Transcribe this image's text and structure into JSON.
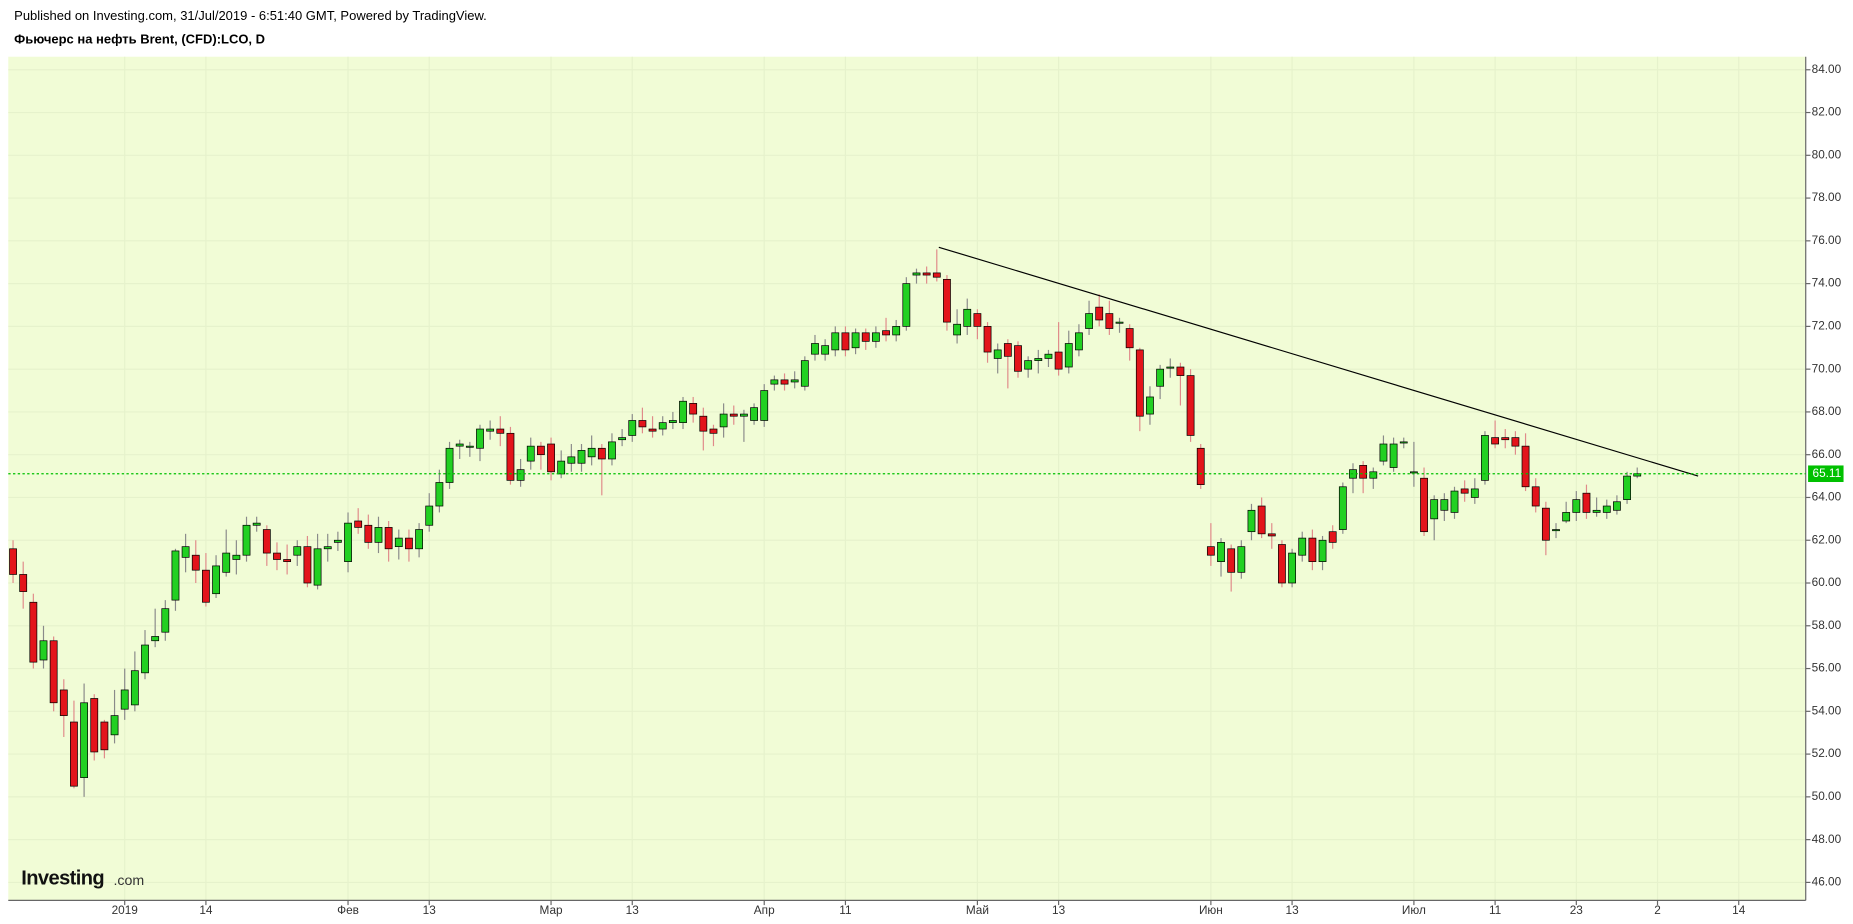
{
  "header": {
    "published": "Published on Investing.com, 31/Jul/2019 - 6:51:40 GMT, Powered by TradingView.",
    "symbol": "Фьючерс на нефть Brent, (CFD):LCO, D"
  },
  "logo": {
    "name": "Investing",
    "suffix": ".com"
  },
  "chart_data": {
    "type": "candlestick",
    "up_color": "#22d022",
    "down_color": "#e3141b",
    "background": "#f1fcd6",
    "grid": true,
    "xlim": [
      -0.47,
      176.6
    ],
    "ylim": [
      45.16,
      84.61
    ],
    "xticks": [
      {
        "value": 11,
        "label": "2019"
      },
      {
        "value": 19,
        "label": "14"
      },
      {
        "value": 33,
        "label": "Фев"
      },
      {
        "value": 41,
        "label": "13"
      },
      {
        "value": 53,
        "label": "Мар"
      },
      {
        "value": 61,
        "label": "13"
      },
      {
        "value": 74,
        "label": "Апр"
      },
      {
        "value": 82,
        "label": "11"
      },
      {
        "value": 95,
        "label": "Май"
      },
      {
        "value": 103,
        "label": "13"
      },
      {
        "value": 118,
        "label": "Июн"
      },
      {
        "value": 126,
        "label": "13"
      },
      {
        "value": 138,
        "label": "Июл"
      },
      {
        "value": 146,
        "label": "11"
      },
      {
        "value": 154,
        "label": "23"
      },
      {
        "value": 162,
        "label": "2"
      },
      {
        "value": 170,
        "label": "14"
      }
    ],
    "yticks": [
      {
        "value": 46,
        "label": "46.00"
      },
      {
        "value": 48,
        "label": "48.00"
      },
      {
        "value": 50,
        "label": "50.00"
      },
      {
        "value": 52,
        "label": "52.00"
      },
      {
        "value": 54,
        "label": "54.00"
      },
      {
        "value": 56,
        "label": "56.00"
      },
      {
        "value": 58,
        "label": "58.00"
      },
      {
        "value": 60,
        "label": "60.00"
      },
      {
        "value": 62,
        "label": "62.00"
      },
      {
        "value": 64,
        "label": "64.00"
      },
      {
        "value": 66,
        "label": "66.00"
      },
      {
        "value": 68,
        "label": "68.00"
      },
      {
        "value": 70,
        "label": "70.00"
      },
      {
        "value": 72,
        "label": "72.00"
      },
      {
        "value": 74,
        "label": "74.00"
      },
      {
        "value": 76,
        "label": "76.00"
      },
      {
        "value": 78,
        "label": "78.00"
      },
      {
        "value": 80,
        "label": "80.00"
      },
      {
        "value": 82,
        "label": "82.00"
      },
      {
        "value": 84,
        "label": "84.00"
      }
    ],
    "open": [
      61.6,
      60.4,
      59.1,
      56.4,
      57.3,
      55.0,
      53.5,
      50.9,
      54.6,
      53.5,
      52.9,
      54.1,
      54.3,
      55.8,
      57.3,
      57.7,
      59.2,
      61.2,
      61.3,
      60.6,
      59.5,
      60.5,
      61.1,
      61.3,
      62.7,
      62.5,
      61.4,
      61.1,
      61.3,
      61.7,
      59.9,
      61.6,
      61.9,
      61.0,
      62.9,
      62.7,
      61.9,
      62.6,
      61.7,
      62.1,
      61.6,
      62.7,
      63.6,
      64.7,
      66.4,
      66.4,
      66.3,
      67.1,
      67.2,
      67.0,
      64.8,
      65.7,
      66.4,
      66.5,
      65.1,
      65.6,
      65.6,
      65.9,
      66.3,
      65.8,
      66.7,
      66.9,
      67.6,
      67.2,
      67.2,
      67.5,
      67.5,
      68.4,
      67.8,
      67.2,
      67.3,
      67.9,
      67.8,
      67.6,
      67.6,
      69.3,
      69.5,
      69.4,
      69.2,
      70.7,
      70.7,
      70.9,
      71.7,
      71.0,
      71.7,
      71.3,
      71.8,
      71.6,
      72.0,
      74.4,
      74.5,
      74.5,
      74.2,
      71.6,
      72.0,
      72.6,
      72.0,
      70.5,
      71.2,
      71.1,
      70.0,
      70.4,
      70.5,
      70.8,
      70.1,
      70.9,
      71.9,
      72.9,
      72.6,
      72.2,
      71.9,
      70.9,
      67.9,
      69.2,
      70.1,
      70.1,
      69.7,
      66.3,
      61.7,
      61.0,
      61.6,
      60.5,
      62.4,
      63.6,
      62.3,
      61.8,
      60.0,
      61.3,
      62.1,
      61.0,
      62.4,
      62.5,
      64.9,
      65.5,
      64.9,
      65.7,
      65.4,
      66.6,
      65.2,
      64.9,
      63.0,
      63.4,
      63.3,
      64.4,
      64.0,
      64.8,
      66.8,
      66.8,
      66.8,
      66.4,
      64.5,
      63.5,
      62.5,
      62.9,
      63.3,
      64.2,
      63.3,
      63.3,
      63.4,
      63.9,
      65.0
    ],
    "high": [
      62,
      61,
      59.5,
      58,
      57.5,
      55.5,
      54.5,
      55.3,
      54.8,
      53.6,
      55,
      56,
      56.8,
      57.8,
      58.8,
      59.2,
      61.6,
      62.3,
      62,
      61.4,
      61.3,
      62.5,
      62,
      63.1,
      63.1,
      62.7,
      61.9,
      61.8,
      62,
      62.2,
      62.3,
      62.3,
      62.4,
      63.3,
      63.5,
      63.2,
      63.1,
      62.9,
      62.5,
      62.5,
      62.8,
      64.2,
      65.3,
      66.6,
      66.7,
      66.6,
      67.4,
      67.6,
      67.8,
      67.3,
      65.8,
      66.8,
      66.6,
      66.8,
      66.2,
      66.5,
      66.5,
      66.9,
      66.5,
      67,
      67.2,
      67.9,
      68.2,
      67.8,
      67.8,
      68,
      68.7,
      68.7,
      68.2,
      67.4,
      68.4,
      68.3,
      68.1,
      68.4,
      69.3,
      69.7,
      69.8,
      69.9,
      70.6,
      71.6,
      71.4,
      72,
      72,
      71.9,
      71.9,
      72,
      72.4,
      72.3,
      74.3,
      74.7,
      74.8,
      75.6,
      74.4,
      72.8,
      73.3,
      72.8,
      72.2,
      71.2,
      71.4,
      71.3,
      70.6,
      70.9,
      70.9,
      72.2,
      71.8,
      72.1,
      73.2,
      73.5,
      73.2,
      72.4,
      72.1,
      71,
      69.2,
      70.2,
      70.5,
      70.3,
      70,
      66.5,
      62.8,
      62.1,
      61.8,
      62,
      63.7,
      64,
      62.8,
      62,
      61.6,
      62.4,
      62.5,
      62.2,
      62.7,
      64.7,
      65.6,
      65.7,
      65.4,
      66.9,
      66.8,
      66.8,
      66.6,
      65.4,
      64.1,
      64.2,
      64.5,
      64.8,
      64.9,
      67.1,
      67.6,
      67.2,
      67.1,
      67,
      64.9,
      63.8,
      62.8,
      63.8,
      64.3,
      64.6,
      64,
      63.9,
      64.1,
      65.2,
      65.4
    ],
    "low": [
      60.0,
      58.8,
      56,
      56,
      54,
      52.8,
      50.4,
      50,
      51.7,
      51.8,
      52.5,
      53.6,
      54,
      55.5,
      57,
      57.3,
      58.7,
      60.5,
      60,
      58.9,
      59.3,
      60.3,
      60.4,
      61,
      62.4,
      60.8,
      60.6,
      60.4,
      60.8,
      59.8,
      59.7,
      61,
      61.5,
      60.5,
      62.3,
      61.6,
      61.4,
      61,
      61.1,
      61,
      61.2,
      62.4,
      63.3,
      64.4,
      65.8,
      65.9,
      65.7,
      66.7,
      66.4,
      64.6,
      64.5,
      65.3,
      65.3,
      64.8,
      64.9,
      65.2,
      65.2,
      65.5,
      64.1,
      65.5,
      66.4,
      66.6,
      67.0,
      66.8,
      66.9,
      67.2,
      67.2,
      67.5,
      66.2,
      66.4,
      66.8,
      67.4,
      66.6,
      67.4,
      67.3,
      69,
      69,
      69.1,
      69,
      70.4,
      70.4,
      70.6,
      70.6,
      70.7,
      70.9,
      71,
      71.3,
      71.3,
      71.8,
      74,
      74,
      74.1,
      71.8,
      71.2,
      71.6,
      71.4,
      70.3,
      69.8,
      69.1,
      69.6,
      69.6,
      69.8,
      70.1,
      69.7,
      69.8,
      70.6,
      71.6,
      72,
      71.6,
      71.7,
      70.4,
      67.1,
      67.4,
      68.6,
      69.6,
      68.3,
      66.6,
      64.4,
      60.8,
      60.3,
      59.6,
      60.2,
      62,
      62.1,
      61.6,
      59.8,
      59.8,
      61,
      60.6,
      60.6,
      61.6,
      62.3,
      64.2,
      64.2,
      64.4,
      65.5,
      65.2,
      66.3,
      64.5,
      62.2,
      62.0,
      62.9,
      63,
      63.8,
      63.7,
      64.6,
      66.3,
      66.3,
      66.0,
      64.3,
      63.3,
      61.3,
      62.1,
      62.8,
      62.9,
      63,
      63.1,
      63,
      63.2,
      63.7,
      64.9
    ],
    "close": [
      60.4,
      59.6,
      56.3,
      57.3,
      54.4,
      53.8,
      50.5,
      54.4,
      52.1,
      52.2,
      53.8,
      55.0,
      55.9,
      57.1,
      57.5,
      58.8,
      61.5,
      61.7,
      60.6,
      59.1,
      60.8,
      61.4,
      61.3,
      62.7,
      62.8,
      61.4,
      61.1,
      61.0,
      61.7,
      60.0,
      61.6,
      61.7,
      62.0,
      62.8,
      62.6,
      61.9,
      62.6,
      61.6,
      62.1,
      61.6,
      62.5,
      63.6,
      64.7,
      66.3,
      66.5,
      66.4,
      67.2,
      67.2,
      67.0,
      64.8,
      65.3,
      66.4,
      66.0,
      65.2,
      65.7,
      65.9,
      66.2,
      66.3,
      65.8,
      66.6,
      66.8,
      67.6,
      67.3,
      67.1,
      67.5,
      67.6,
      68.5,
      67.9,
      67.1,
      67.0,
      67.9,
      67.8,
      67.9,
      68.2,
      69.0,
      69.5,
      69.3,
      69.5,
      70.4,
      71.2,
      71.1,
      71.7,
      70.9,
      71.7,
      71.3,
      71.7,
      71.6,
      72.0,
      74.0,
      74.5,
      74.4,
      74.3,
      72.2,
      72.1,
      72.8,
      72.0,
      70.8,
      70.9,
      70.6,
      69.9,
      70.4,
      70.5,
      70.7,
      70.0,
      71.2,
      71.7,
      72.6,
      72.3,
      71.9,
      72.2,
      71.0,
      67.8,
      68.7,
      70.0,
      70.1,
      69.7,
      66.9,
      64.6,
      61.3,
      61.9,
      60.5,
      61.7,
      63.4,
      62.3,
      62.2,
      60.0,
      61.4,
      62.1,
      61.0,
      62.0,
      61.9,
      64.5,
      65.3,
      64.9,
      65.2,
      66.5,
      66.5,
      66.6,
      65.2,
      62.4,
      63.9,
      63.9,
      64.3,
      64.2,
      64.4,
      66.9,
      66.5,
      66.7,
      66.4,
      64.5,
      63.6,
      62.0,
      62.5,
      63.3,
      63.9,
      63.3,
      63.4,
      63.6,
      63.8,
      65.0,
      65.11
    ],
    "trendline": {
      "x": [
        91.2,
        166.0
      ],
      "y": [
        75.7,
        65.0
      ],
      "color": "#000000"
    },
    "price_line": {
      "value": 65.11,
      "color": "#00c000"
    }
  }
}
